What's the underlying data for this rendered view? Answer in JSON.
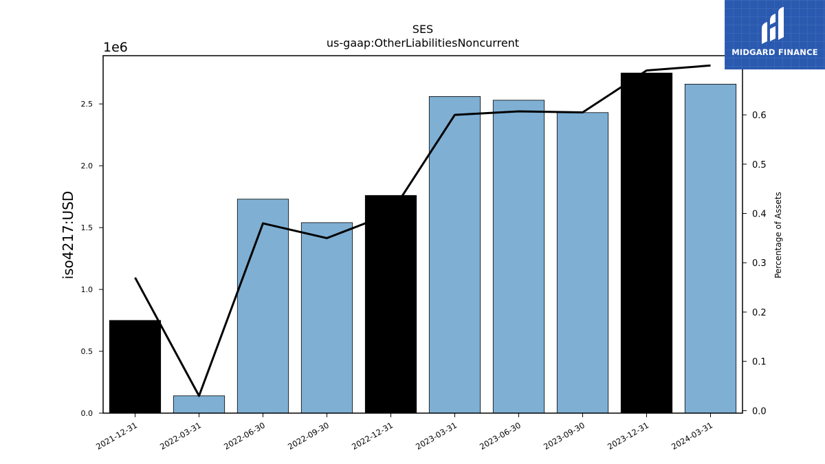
{
  "chart_data": {
    "type": "bar",
    "title": "SES",
    "subtitle": "us-gaap:OtherLiabilitiesNoncurrent",
    "ylabel": "iso4217:USD",
    "y_scale_label": "1e6",
    "y2label": "Percentage of Assets",
    "categories": [
      "2021-12-31",
      "2022-03-31",
      "2022-06-30",
      "2022-09-30",
      "2022-12-31",
      "2023-03-31",
      "2023-06-30",
      "2023-09-30",
      "2023-12-31",
      "2024-03-31"
    ],
    "values": [
      750000,
      140000,
      1730000,
      1540000,
      1760000,
      2560000,
      2530000,
      2430000,
      2750000,
      2660000
    ],
    "bar_colors": [
      "#000000",
      "#7fafd3",
      "#7fafd3",
      "#7fafd3",
      "#000000",
      "#7fafd3",
      "#7fafd3",
      "#7fafd3",
      "#000000",
      "#7fafd3"
    ],
    "line_series": {
      "values": [
        0.27,
        0.03,
        0.38,
        0.35,
        0.4,
        0.6,
        0.607,
        0.605,
        0.69,
        0.7
      ],
      "color": "#000000"
    },
    "ylim": [
      0,
      2890000
    ],
    "y_ticks": [
      0,
      500000,
      1000000,
      1500000,
      2000000,
      2500000
    ],
    "y_tick_labels": [
      "0.0",
      "0.5",
      "1.0",
      "1.5",
      "2.0",
      "2.5"
    ],
    "y2lim": [
      -0.005,
      0.72
    ],
    "y2_ticks": [
      0.0,
      0.1,
      0.2,
      0.3,
      0.4,
      0.5,
      0.6,
      0.7
    ],
    "y2_tick_labels": [
      "0.0",
      "0.1",
      "0.2",
      "0.3",
      "0.4",
      "0.5",
      "0.6",
      "0.7"
    ],
    "grid": false,
    "legend": "none"
  },
  "logo": {
    "text": "MIDGARD FINANCE"
  }
}
